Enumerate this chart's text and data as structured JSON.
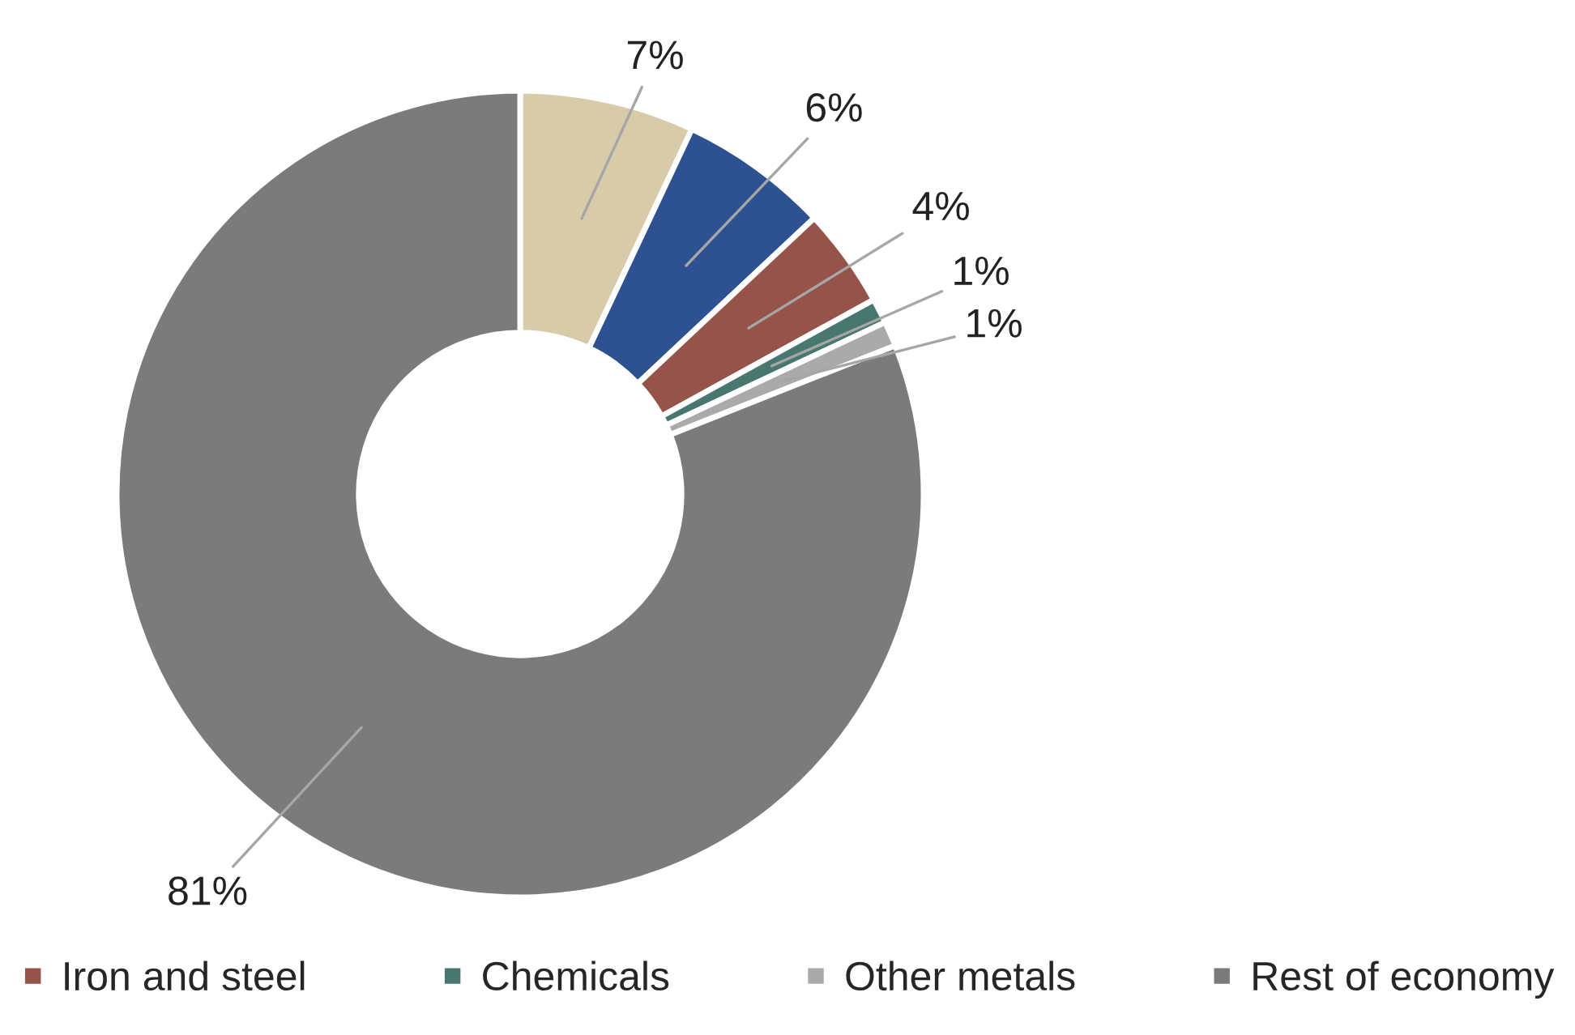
{
  "chart_data": {
    "type": "donut",
    "categories": [
      null,
      null,
      "Iron and steel",
      "Chemicals",
      "Other metals",
      "Rest of economy"
    ],
    "values": [
      7,
      6,
      4,
      1,
      1,
      81
    ],
    "colors": [
      "#d8cbaa",
      "#2e5291",
      "#95534a",
      "#48776f",
      "#aaaaaa",
      "#7b7b7b"
    ],
    "value_labels": [
      "7%",
      "6%",
      "4%",
      "1%",
      "1%",
      "81%"
    ],
    "legend": "bottom"
  }
}
